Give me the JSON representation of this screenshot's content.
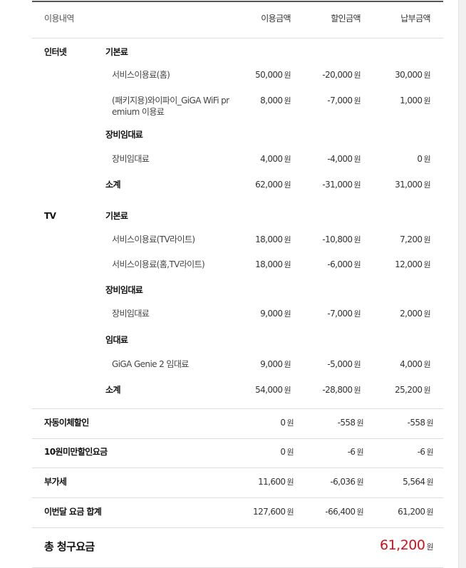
{
  "header": {
    "col_item": "이용내역",
    "col_usage": "이용금액",
    "col_discount": "할인금액",
    "col_payment": "납부금액"
  },
  "currency": "원",
  "sections": [
    {
      "category": "인터넷",
      "rows": [
        {
          "type": "group",
          "label": "기본료"
        },
        {
          "type": "item",
          "label": "서비스이용료(홈)",
          "usage": "50,000",
          "discount": "-20,000",
          "payment": "30,000"
        },
        {
          "type": "item",
          "label": "(패키지용)와이파이_GiGA WiFi pr\nemium 이용료",
          "usage": "8,000",
          "discount": "-7,000",
          "payment": "1,000"
        },
        {
          "type": "group",
          "label": "장비임대료"
        },
        {
          "type": "item",
          "label": "장비임대료",
          "usage": "4,000",
          "discount": "-4,000",
          "payment": "0"
        },
        {
          "type": "subtotal",
          "label": "소계",
          "usage": "62,000",
          "discount": "-31,000",
          "payment": "31,000"
        }
      ]
    },
    {
      "category": "TV",
      "rows": [
        {
          "type": "group",
          "label": "기본료"
        },
        {
          "type": "item",
          "label": "서비스이용료(TV라이트)",
          "usage": "18,000",
          "discount": "-10,800",
          "payment": "7,200"
        },
        {
          "type": "item",
          "label": "서비스이용료(홈,TV라이트)",
          "usage": "18,000",
          "discount": "-6,000",
          "payment": "12,000"
        },
        {
          "type": "group",
          "label": "장비임대료"
        },
        {
          "type": "item",
          "label": "장비임대료",
          "usage": "9,000",
          "discount": "-7,000",
          "payment": "2,000"
        },
        {
          "type": "group",
          "label": "임대료"
        },
        {
          "type": "item",
          "label": "GiGA Genie 2 임대료",
          "usage": "9,000",
          "discount": "-5,000",
          "payment": "4,000"
        },
        {
          "type": "subtotal",
          "label": "소계",
          "usage": "54,000",
          "discount": "-28,800",
          "payment": "25,200"
        }
      ]
    }
  ],
  "summary": [
    {
      "label": "자동이체할인",
      "usage": "0",
      "discount": "-558",
      "payment": "-558"
    },
    {
      "label": "10원미만할인요금",
      "usage": "0",
      "discount": "-6",
      "payment": "-6"
    },
    {
      "label": "부가세",
      "usage": "11,600",
      "discount": "-6,036",
      "payment": "5,564"
    },
    {
      "label": "이번달 요금 합계",
      "usage": "127,600",
      "discount": "-66,400",
      "payment": "61,200"
    }
  ],
  "total": {
    "label": "총 청구요금",
    "amount": "61,200"
  },
  "colors": {
    "total_amount": "#d0111b"
  }
}
